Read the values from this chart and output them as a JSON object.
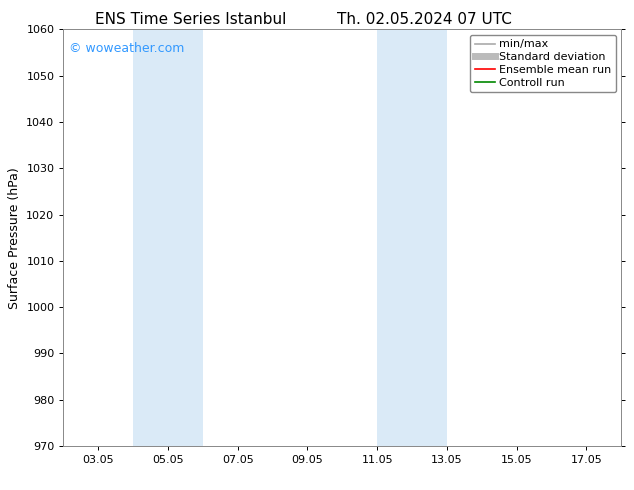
{
  "title_left": "ENS Time Series Istanbul",
  "title_right": "Th. 02.05.2024 07 UTC",
  "ylabel": "Surface Pressure (hPa)",
  "ylim": [
    970,
    1060
  ],
  "yticks": [
    970,
    980,
    990,
    1000,
    1010,
    1020,
    1030,
    1040,
    1050,
    1060
  ],
  "xtick_labels": [
    "03.05",
    "05.05",
    "07.05",
    "09.05",
    "11.05",
    "13.05",
    "15.05",
    "17.05"
  ],
  "xtick_positions": [
    3,
    5,
    7,
    9,
    11,
    13,
    15,
    17
  ],
  "xlim": [
    2.0,
    18.0
  ],
  "shaded_bands": [
    {
      "xmin": 4.0,
      "xmax": 6.0
    },
    {
      "xmin": 11.0,
      "xmax": 13.0
    }
  ],
  "shaded_color": "#daeaf7",
  "watermark_text": "© woweather.com",
  "watermark_color": "#3399ff",
  "background_color": "#ffffff",
  "spine_color": "#888888",
  "legend_items": [
    {
      "label": "min/max",
      "color": "#aaaaaa",
      "lw": 1.2,
      "linestyle": "-"
    },
    {
      "label": "Standard deviation",
      "color": "#bbbbbb",
      "lw": 5,
      "linestyle": "-"
    },
    {
      "label": "Ensemble mean run",
      "color": "#ff0000",
      "lw": 1.2,
      "linestyle": "-"
    },
    {
      "label": "Controll run",
      "color": "#008800",
      "lw": 1.2,
      "linestyle": "-"
    }
  ],
  "title_fontsize": 11,
  "axis_label_fontsize": 9,
  "tick_fontsize": 8,
  "legend_fontsize": 8,
  "watermark_fontsize": 9
}
